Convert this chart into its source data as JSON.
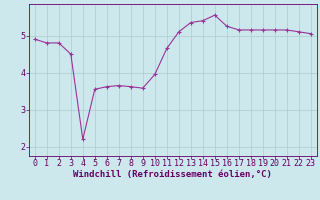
{
  "x": [
    0,
    1,
    2,
    3,
    4,
    5,
    6,
    7,
    8,
    9,
    10,
    11,
    12,
    13,
    14,
    15,
    16,
    17,
    18,
    19,
    20,
    21,
    22,
    23
  ],
  "y": [
    4.9,
    4.8,
    4.8,
    4.5,
    2.2,
    3.55,
    3.62,
    3.65,
    3.62,
    3.58,
    3.95,
    4.65,
    5.1,
    5.35,
    5.4,
    5.55,
    5.25,
    5.15,
    5.15,
    5.15,
    5.15,
    5.15,
    5.1,
    5.05
  ],
  "line_color": "#993399",
  "marker": "+",
  "marker_size": 3,
  "marker_lw": 0.8,
  "bg_color": "#cce8ec",
  "grid_color": "#aacccc",
  "xlabel": "Windchill (Refroidissement éolien,°C)",
  "xlabel_color": "#660066",
  "tick_color": "#660066",
  "axis_color": "#660066",
  "xlim": [
    -0.5,
    23.5
  ],
  "ylim": [
    1.75,
    5.85
  ],
  "yticks": [
    2,
    3,
    4,
    5
  ],
  "xticks": [
    0,
    1,
    2,
    3,
    4,
    5,
    6,
    7,
    8,
    9,
    10,
    11,
    12,
    13,
    14,
    15,
    16,
    17,
    18,
    19,
    20,
    21,
    22,
    23
  ],
  "font_size": 6,
  "xlabel_fontsize": 6.5,
  "line_width": 0.8
}
